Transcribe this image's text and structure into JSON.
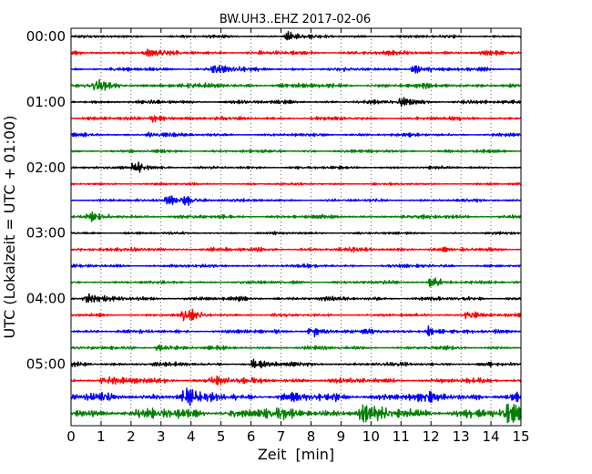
{
  "chart_data": {
    "type": "line",
    "title": "BW.UH3..EHZ 2017-02-06",
    "xlabel": "Zeit  [min]",
    "ylabel": "UTC (Lokalzeit = UTC + 01:00)",
    "xlim": [
      0,
      15
    ],
    "x_ticks": [
      "0",
      "1",
      "2",
      "3",
      "4",
      "5",
      "6",
      "7",
      "8",
      "9",
      "10",
      "11",
      "12",
      "13",
      "14",
      "15"
    ],
    "y_ticks": [
      "00:00",
      "01:00",
      "02:00",
      "03:00",
      "04:00",
      "05:00"
    ],
    "grid": "vertical dotted lines at each minute",
    "trace_colors": [
      "#000000",
      "#ff0000",
      "#0000ff",
      "#008000"
    ],
    "minutes_per_trace": 15,
    "trace_count": 24,
    "events": [
      {
        "trace": 0,
        "minute": 7.2,
        "amp": 0.55
      },
      {
        "trace": 1,
        "minute": 2.5,
        "amp": 0.5
      },
      {
        "trace": 2,
        "minute": 4.8,
        "amp": 0.6
      },
      {
        "trace": 2,
        "minute": 11.4,
        "amp": 0.5
      },
      {
        "trace": 3,
        "minute": 0.8,
        "amp": 0.55
      },
      {
        "trace": 4,
        "minute": 11.0,
        "amp": 0.6
      },
      {
        "trace": 5,
        "minute": 2.7,
        "amp": 0.6
      },
      {
        "trace": 6,
        "minute": 2.6,
        "amp": 0.4
      },
      {
        "trace": 8,
        "minute": 2.1,
        "amp": 0.85
      },
      {
        "trace": 10,
        "minute": 3.2,
        "amp": 0.75
      },
      {
        "trace": 10,
        "minute": 3.8,
        "amp": 0.7
      },
      {
        "trace": 11,
        "minute": 0.6,
        "amp": 0.5
      },
      {
        "trace": 15,
        "minute": 12.0,
        "amp": 0.7
      },
      {
        "trace": 16,
        "minute": 0.5,
        "amp": 0.5
      },
      {
        "trace": 17,
        "minute": 3.8,
        "amp": 0.85
      },
      {
        "trace": 17,
        "minute": 13.2,
        "amp": 0.6
      },
      {
        "trace": 18,
        "minute": 8.0,
        "amp": 0.6
      },
      {
        "trace": 18,
        "minute": 11.9,
        "amp": 0.55
      },
      {
        "trace": 19,
        "minute": 2.9,
        "amp": 0.5
      },
      {
        "trace": 20,
        "minute": 6.1,
        "amp": 0.5
      },
      {
        "trace": 21,
        "minute": 1.1,
        "amp": 0.5
      },
      {
        "trace": 21,
        "minute": 4.7,
        "amp": 0.55
      },
      {
        "trace": 22,
        "minute": 3.8,
        "amp": 0.9
      },
      {
        "trace": 23,
        "minute": 9.7,
        "amp": 0.7
      },
      {
        "trace": 23,
        "minute": 14.5,
        "amp": 0.75
      }
    ],
    "base_noise": [
      0.15,
      0.22,
      0.2,
      0.25,
      0.2,
      0.18,
      0.17,
      0.16,
      0.14,
      0.12,
      0.15,
      0.2,
      0.13,
      0.22,
      0.18,
      0.16,
      0.22,
      0.16,
      0.2,
      0.18,
      0.22,
      0.28,
      0.45,
      0.55
    ]
  }
}
